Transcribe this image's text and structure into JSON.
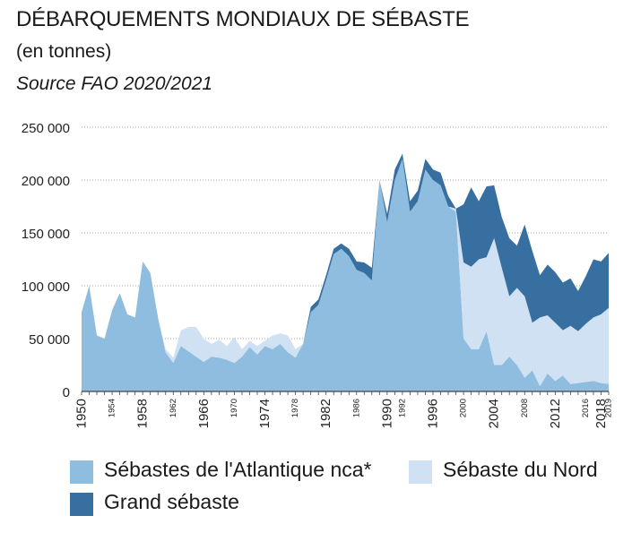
{
  "title": "DÉBARQUEMENTS MONDIAUX DE SÉBASTE",
  "subtitle": "(en tonnes)",
  "source": "Source FAO 2020/2021",
  "colors": {
    "atlantique": "#8fbddf",
    "nord": "#cfe1f3",
    "grand": "#366fa0",
    "axis": "#444444",
    "grid": "#888888"
  },
  "legend": {
    "atlantique": "Sébastes de l'Atlantique nca*",
    "nord": "Sébaste du Nord",
    "grand": "Grand sébaste"
  },
  "chart_data": {
    "type": "area",
    "stacked": true,
    "x": [
      1950,
      1951,
      1952,
      1953,
      1954,
      1955,
      1956,
      1957,
      1958,
      1959,
      1960,
      1961,
      1962,
      1963,
      1964,
      1965,
      1966,
      1967,
      1968,
      1969,
      1970,
      1971,
      1972,
      1973,
      1974,
      1975,
      1976,
      1977,
      1978,
      1979,
      1980,
      1981,
      1982,
      1983,
      1984,
      1985,
      1986,
      1987,
      1988,
      1989,
      1990,
      1991,
      1992,
      1993,
      1994,
      1995,
      1996,
      1997,
      1998,
      1999,
      2000,
      2001,
      2002,
      2003,
      2004,
      2005,
      2006,
      2007,
      2008,
      2009,
      2010,
      2011,
      2012,
      2013,
      2014,
      2015,
      2016,
      2017,
      2018,
      2019
    ],
    "series": [
      {
        "name": "Sébastes de l'Atlantique nca*",
        "key": "atlantique",
        "values": [
          75000,
          100000,
          53000,
          50000,
          77000,
          93000,
          73000,
          70000,
          123000,
          112000,
          70000,
          37000,
          27000,
          43000,
          38000,
          33000,
          28000,
          33000,
          32000,
          30000,
          27000,
          33000,
          42000,
          35000,
          43000,
          40000,
          45000,
          37000,
          32000,
          45000,
          75000,
          82000,
          105000,
          130000,
          135000,
          128000,
          115000,
          112000,
          105000,
          200000,
          160000,
          200000,
          220000,
          170000,
          180000,
          210000,
          200000,
          195000,
          175000,
          170000,
          50000,
          40000,
          40000,
          57000,
          25000,
          25000,
          33000,
          25000,
          13000,
          20000,
          5000,
          17000,
          10000,
          15000,
          7000,
          8000,
          9000,
          10000,
          8000,
          7000
        ]
      },
      {
        "name": "Sébaste du Nord",
        "key": "nord",
        "values": [
          0,
          0,
          0,
          0,
          0,
          0,
          0,
          0,
          0,
          0,
          0,
          3000,
          5000,
          15000,
          23000,
          28000,
          22000,
          12000,
          17000,
          13000,
          24000,
          7000,
          6000,
          8000,
          5000,
          13000,
          10000,
          16000,
          8000,
          0,
          0,
          0,
          0,
          0,
          0,
          0,
          0,
          0,
          0,
          0,
          0,
          0,
          0,
          0,
          0,
          0,
          0,
          0,
          0,
          3000,
          72000,
          78000,
          85000,
          70000,
          120000,
          92000,
          57000,
          73000,
          77000,
          45000,
          65000,
          55000,
          55000,
          43000,
          55000,
          49000,
          55000,
          60000,
          65000,
          72000
        ]
      },
      {
        "name": "Grand sébaste",
        "key": "grand",
        "values": [
          0,
          0,
          0,
          0,
          0,
          0,
          0,
          0,
          0,
          0,
          0,
          0,
          0,
          0,
          0,
          0,
          0,
          0,
          0,
          0,
          0,
          0,
          0,
          0,
          0,
          0,
          0,
          0,
          0,
          0,
          5000,
          5000,
          5000,
          5000,
          5000,
          7000,
          8000,
          10000,
          12000,
          0,
          8000,
          10000,
          5000,
          10000,
          10000,
          10000,
          10000,
          12000,
          10000,
          0,
          55000,
          75000,
          55000,
          67000,
          50000,
          48000,
          55000,
          40000,
          68000,
          68000,
          40000,
          48000,
          48000,
          45000,
          45000,
          38000,
          45000,
          55000,
          50000,
          52000
        ]
      }
    ],
    "ylim": [
      0,
      250000
    ],
    "yticks": [
      0,
      50000,
      100000,
      150000,
      200000,
      250000
    ],
    "ytick_labels": [
      "0",
      "50 000",
      "100 000",
      "150 000",
      "200 000",
      "250 000"
    ],
    "xticks": [
      1950,
      1954,
      1958,
      1962,
      1966,
      1970,
      1974,
      1978,
      1982,
      1986,
      1990,
      1992,
      1996,
      2000,
      2004,
      2008,
      2012,
      2016,
      2018,
      2019
    ],
    "xtick_labels": [
      "1950",
      "1954",
      "1958",
      "1962",
      "1966",
      "1970",
      "1974",
      "1978",
      "1982",
      "1986",
      "1990",
      "1992",
      "1996",
      "2000",
      "2004",
      "2008",
      "2012",
      "2016",
      "2018",
      "2019"
    ],
    "xtick_major": [
      1950,
      1958,
      1966,
      1974,
      1982,
      1990,
      1996,
      2004,
      2012,
      2018
    ],
    "grid": true,
    "legend_position": "bottom"
  }
}
